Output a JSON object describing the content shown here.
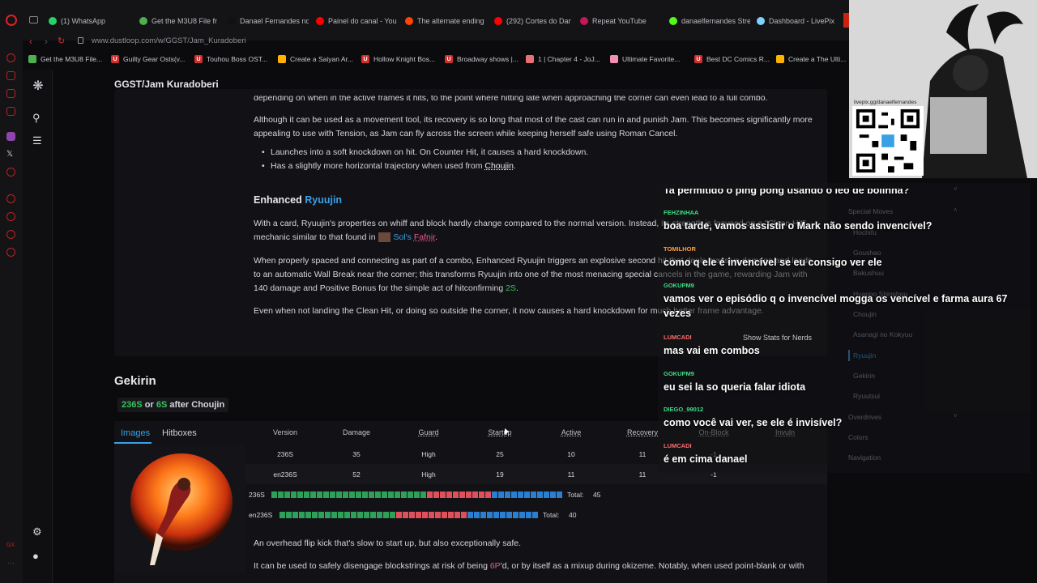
{
  "browser": {
    "tabs": [
      {
        "label": "(1) WhatsApp",
        "color": "#25d366"
      },
      {
        "label": "Get the M3U8 File fr",
        "color": "#4caf50"
      },
      {
        "label": "Danael Fernandes no",
        "color": "#111111"
      },
      {
        "label": "Painel do canal - You",
        "color": "#ff0000"
      },
      {
        "label": "The alternate ending",
        "color": "#ff4500"
      },
      {
        "label": "(292) Cortes do Dan",
        "color": "#ff0000"
      },
      {
        "label": "Repeat YouTube",
        "color": "#c2185b"
      },
      {
        "label": "danaelfernandes Stre",
        "color": "#53fc18"
      },
      {
        "label": "Dashboard - LivePix",
        "color": "#7dd3fc"
      }
    ],
    "url": "www.dustloop.com/w/GGST/Jam_Kuradoberi",
    "bookmarks": [
      {
        "label": "Get the M3U8 File...",
        "color": "#4caf50"
      },
      {
        "label": "Guilty Gear Osts(v...",
        "color": "#d32f2f",
        "glyph": "U"
      },
      {
        "label": "Touhou Boss OST...",
        "color": "#d32f2f",
        "glyph": "U"
      },
      {
        "label": "Create a Saiyan Ar...",
        "color": "#ffb300"
      },
      {
        "label": "Hollow Knight Bos...",
        "color": "#d32f2f",
        "glyph": "U"
      },
      {
        "label": "Broadway shows |...",
        "color": "#d32f2f",
        "glyph": "U"
      },
      {
        "label": "1 | Chapter 4 - JoJ...",
        "color": "#e57373"
      },
      {
        "label": "Ultimate Favorite...",
        "color": "#f48fb1"
      },
      {
        "label": "Best DC Comics R...",
        "color": "#d32f2f",
        "glyph": "U"
      },
      {
        "label": "Create a The Ulti...",
        "color": "#ffb300"
      }
    ]
  },
  "page": {
    "title": "GGST/Jam Kuradoberi",
    "para_top": "depending on when in the active frames it hits, to the point where hitting late when approaching the corner can even lead to a full combo.",
    "para1_line1": "Although it can be used as a movement tool, its recovery is so long that most of the cast can run in and punish Jam. This becomes significantly more",
    "para1_line2": "appealing to use with Tension, as Jam can fly across the screen while keeping herself safe using Roman Cancel.",
    "bullet1": "Launches into a soft knockdown on hit. On Counter Hit, it causes a hard knockdown.",
    "bullet2_pre": "Has a slightly more horizontal trajectory when used from ",
    "bullet2_link": "Choujin",
    "bullet2_post": ".",
    "enhanced_pre": "Enhanced ",
    "enhanced_link": "Ryuujin",
    "para2_line1": "With a card, Ryuujin's properties on whiff and block hardly change compared to the normal version. Instead, its strength is focused on a \"Clean Hit\"",
    "para2_line2_pre": "mechanic similar to that found in ",
    "para2_sol": "Sol's",
    "para2_fafnir": "Fafnir",
    "para2_line2_post": ".",
    "para3_line1": "When properly spaced and connecting as part of a combo, Enhanced Ryuujin triggers an explosive second hit that deals massive damage and leads",
    "para3_line2": "to an automatic Wall Break near the corner; this transforms Ryuujin into one of the most menacing special cancels in the game, rewarding Jam with",
    "para3_line3_pre": "140 damage and Positive Bonus for the simple act of hitconfirming ",
    "para3_2s": "2S",
    "para3_line3_post": ".",
    "para4": "Even when not landing the Clean Hit, or doing so outside the corner, it now causes a hard knockdown for much better frame advantage.",
    "move_name": "Gekirin",
    "input_a": "236S",
    "input_or": " or ",
    "input_b": "6S",
    "input_after": " after Choujin",
    "tab_images": "Images",
    "tab_hitboxes": "Hitboxes",
    "headers": [
      "Version",
      "Damage",
      "Guard",
      "Startup",
      "Active",
      "Recovery",
      "On-Block",
      "Invuln"
    ],
    "rows": [
      [
        "236S",
        "35",
        "High",
        "25",
        "10",
        "11",
        "-1",
        ""
      ],
      [
        "en236S",
        "52",
        "High",
        "19",
        "11",
        "11",
        "-1",
        ""
      ]
    ],
    "framebars": [
      {
        "label": "236S",
        "startup": 24,
        "active": 10,
        "recovery": 11,
        "total_label": "Total:",
        "total": "45"
      },
      {
        "label": "en236S",
        "startup": 18,
        "active": 11,
        "recovery": 11,
        "total_label": "Total:",
        "total": "40"
      }
    ],
    "desc1": "An overhead flip kick that's slow to start up, but also exceptionally safe.",
    "desc2_pre": "It can be used to safely disengage blockstrings at risk of being ",
    "desc2_6p": "6P",
    "desc2_post": "'d, or by itself as a mixup during okizeme. Notably, when used point-blank or with"
  },
  "toc": {
    "items": [
      "Special Moves",
      "Hochifu",
      "Goushao",
      "Bakushuu",
      "Hyappo Shinshou",
      "Choujin",
      "Asanagi no Kokyuu",
      "Ryuujin",
      "Gekirin",
      "Ryuutsui",
      "Overdrives",
      "Colors",
      "Navigation"
    ],
    "current": "Ryuujin"
  },
  "chat": {
    "messages": [
      {
        "user": "",
        "text": "Ta permitido o ping pong usando o leo de bolinha?",
        "color": "#ffffff"
      },
      {
        "user": "FEHZINHAA",
        "text": "boa tarde, vamos assistir o Mark não sendo invencível?",
        "color": "#3ddc84"
      },
      {
        "user": "TOMILHOR",
        "text": "como q ele é invencível se eu consigo ver ele",
        "color": "#ff9f43"
      },
      {
        "user": "GOKUPM9",
        "text": "vamos ver o episódio q o invencível mogga os vencível e farma aura 67",
        "text2": "vezes",
        "color": "#3ddc84"
      },
      {
        "user": "LUMCADI",
        "text": "mas vai em combos",
        "color": "#ff6b6b"
      },
      {
        "user": "GOKUPM9",
        "text": "eu sei la so queria falar idiota",
        "color": "#3ddc84"
      },
      {
        "user": "DIEGO_99012",
        "text": "como você vai ver, se ele é invisível?",
        "color": "#3ddc84"
      },
      {
        "user": "LUMCADI",
        "text": "é em cima danael",
        "color": "#ff6b6b"
      }
    ],
    "stats_label": "Show Stats for Nerds"
  },
  "stream": {
    "qr_url": "livepix.gg/danaelfernandes"
  },
  "colors": {
    "startup": "#2fa05a",
    "active": "#e0505a",
    "recovery": "#2a7fd0",
    "link": "#3aa0e6"
  }
}
